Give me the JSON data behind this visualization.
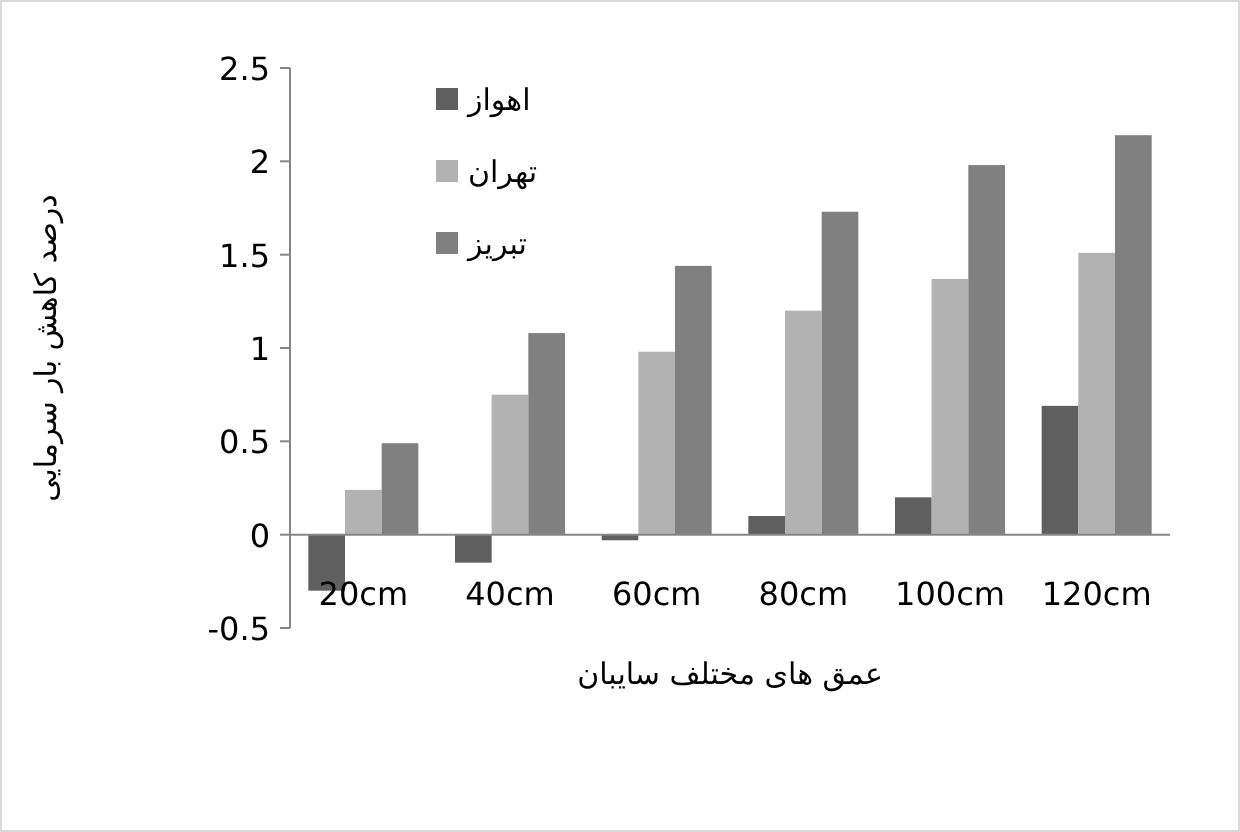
{
  "chart_data": {
    "type": "bar",
    "xlabel": "عمق های مختلف سایبان",
    "ylabel": "درصد کاهش بار سرمایی",
    "categories": [
      "20cm",
      "40cm",
      "60cm",
      "80cm",
      "100cm",
      "120cm"
    ],
    "series": [
      {
        "name": "اهواز",
        "color": "#5f5f5f",
        "values": [
          -0.3,
          -0.15,
          -0.03,
          0.1,
          0.2,
          0.69
        ]
      },
      {
        "name": "تهران",
        "color": "#b2b2b2",
        "values": [
          0.24,
          0.75,
          0.98,
          1.2,
          1.37,
          1.51
        ]
      },
      {
        "name": "تبریز",
        "color": "#808080",
        "values": [
          0.49,
          1.08,
          1.44,
          1.73,
          1.98,
          2.14
        ]
      }
    ],
    "ylim": [
      -0.5,
      2.5
    ],
    "yticks": [
      -0.5,
      0,
      0.5,
      1,
      1.5,
      2,
      2.5
    ],
    "grid": false,
    "legend": "top left"
  }
}
